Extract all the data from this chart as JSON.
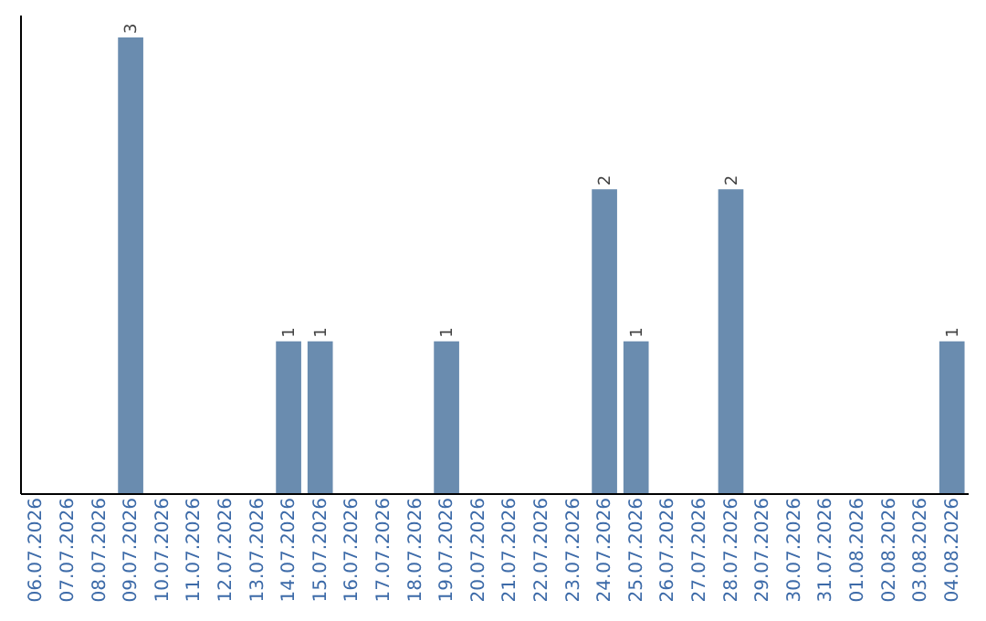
{
  "chart_data": {
    "type": "bar",
    "categories": [
      "06.07.2026",
      "07.07.2026",
      "08.07.2026",
      "09.07.2026",
      "10.07.2026",
      "11.07.2026",
      "12.07.2026",
      "13.07.2026",
      "14.07.2026",
      "15.07.2026",
      "16.07.2026",
      "17.07.2026",
      "18.07.2026",
      "19.07.2026",
      "20.07.2026",
      "21.07.2026",
      "22.07.2026",
      "23.07.2026",
      "24.07.2026",
      "25.07.2026",
      "26.07.2026",
      "27.07.2026",
      "28.07.2026",
      "29.07.2026",
      "30.07.2026",
      "31.07.2026",
      "01.08.2026",
      "02.08.2026",
      "03.08.2026",
      "04.08.2026"
    ],
    "values": [
      0,
      0,
      0,
      3,
      0,
      0,
      0,
      0,
      1,
      1,
      0,
      0,
      0,
      1,
      0,
      0,
      0,
      0,
      2,
      1,
      0,
      0,
      2,
      0,
      0,
      0,
      0,
      0,
      0,
      1
    ],
    "value_labels": [
      null,
      null,
      null,
      "3",
      null,
      null,
      null,
      null,
      "1",
      "1",
      null,
      null,
      null,
      "1",
      null,
      null,
      null,
      null,
      "2",
      "1",
      null,
      null,
      "2",
      null,
      null,
      null,
      null,
      null,
      null,
      "1"
    ],
    "color": "#6a8caf",
    "ylim": [
      0,
      3.15
    ],
    "tick_labels": "x",
    "grid": false
  }
}
